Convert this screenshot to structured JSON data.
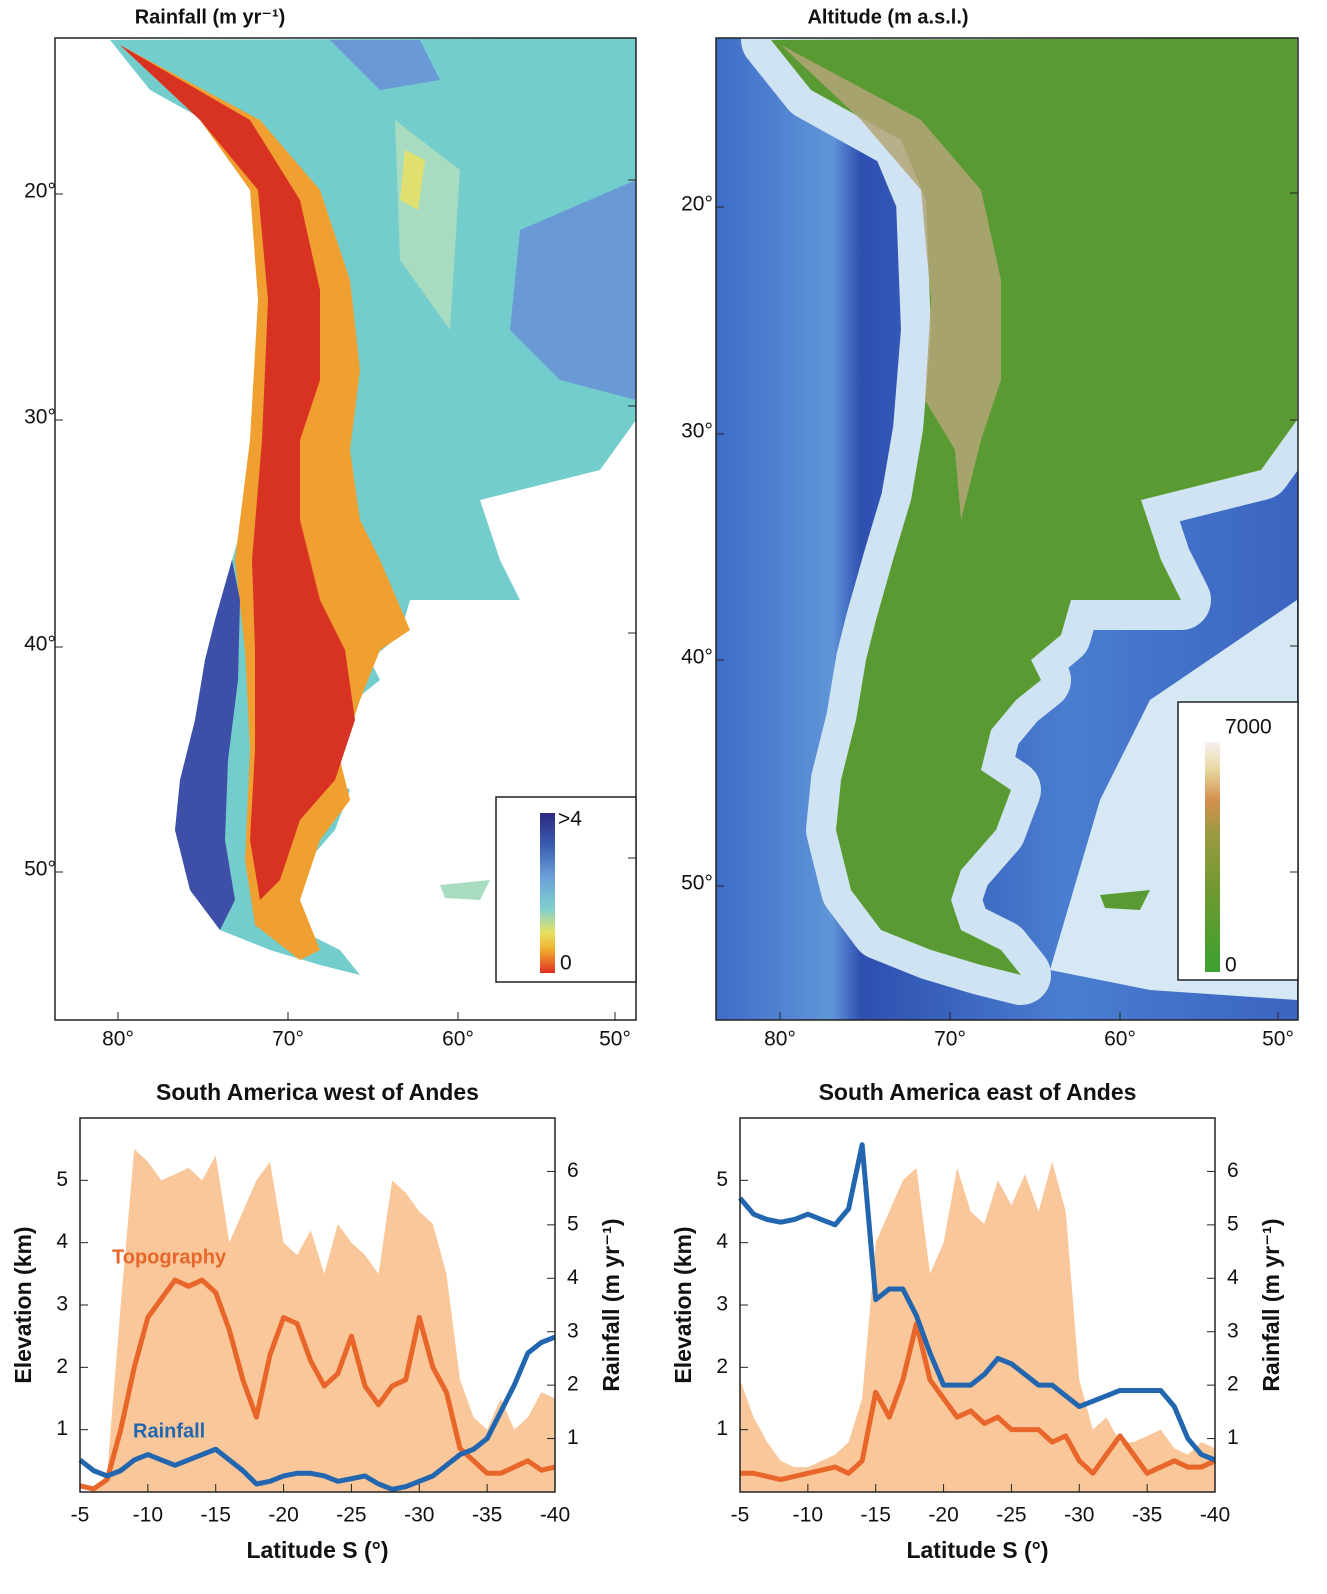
{
  "maps": [
    {
      "title": "Rainfall (m yr⁻¹)",
      "lat_labels": [
        "20°",
        "30°",
        "40°",
        "50°"
      ],
      "lon_labels": [
        "80°",
        "70°",
        "60°",
        "50°"
      ],
      "legend_labels": [
        ">4",
        "0"
      ]
    },
    {
      "title": "Altitude (m a.s.l.)",
      "lat_labels": [
        "20°",
        "30°",
        "40°",
        "50°"
      ],
      "lon_labels": [
        "80°",
        "70°",
        "60°",
        "50°"
      ],
      "legend_labels": [
        "7000",
        "0"
      ]
    }
  ],
  "chart_data": [
    {
      "type": "line",
      "title": "South America west of Andes",
      "x_label": "Latitude S (°)",
      "y_label": "Elevation (km)",
      "y2_label": "Rainfall (m yr⁻¹)",
      "x": [
        -5,
        -6,
        -7,
        -8,
        -9,
        -10,
        -11,
        -12,
        -13,
        -14,
        -15,
        -16,
        -17,
        -18,
        -19,
        -20,
        -21,
        -22,
        -23,
        -24,
        -25,
        -26,
        -27,
        -28,
        -29,
        -30,
        -31,
        -32,
        -33,
        -34,
        -35,
        -36,
        -37,
        -38,
        -39,
        -40
      ],
      "xlim": [
        -5,
        -40
      ],
      "xticks": [
        -5,
        -10,
        -15,
        -20,
        -25,
        -30,
        -35,
        -40
      ],
      "ylim": [
        0,
        6
      ],
      "yticks": [
        1,
        2,
        3,
        4,
        5
      ],
      "y2lim": [
        0,
        7
      ],
      "y2ticks": [
        1,
        2,
        3,
        4,
        5,
        6
      ],
      "series": [
        {
          "type": "area",
          "color": "#f9c79a",
          "values": [
            0,
            0,
            0.3,
            3,
            5.5,
            5.3,
            5.0,
            5.1,
            5.2,
            5.0,
            5.4,
            4.0,
            4.5,
            5.0,
            5.3,
            4.0,
            3.8,
            4.2,
            3.5,
            4.3,
            4.0,
            3.8,
            3.5,
            5.0,
            4.8,
            4.5,
            4.3,
            3.5,
            1.8,
            1.2,
            1.0,
            1.5,
            1.0,
            1.2,
            1.6,
            1.5
          ]
        },
        {
          "name": "Topography",
          "type": "line",
          "color": "#e8662a",
          "values": [
            0.1,
            0.05,
            0.2,
            1.0,
            2.0,
            2.8,
            3.1,
            3.4,
            3.3,
            3.4,
            3.2,
            2.6,
            1.8,
            1.2,
            2.2,
            2.8,
            2.7,
            2.1,
            1.7,
            1.9,
            2.5,
            1.7,
            1.4,
            1.7,
            1.8,
            2.8,
            2.0,
            1.6,
            0.7,
            0.5,
            0.3,
            0.3,
            0.4,
            0.5,
            0.35,
            0.4
          ]
        },
        {
          "name": "Rainfall",
          "type": "line",
          "axis": "y2",
          "color": "#2266b0",
          "values": [
            0.6,
            0.4,
            0.3,
            0.4,
            0.6,
            0.7,
            0.6,
            0.5,
            0.6,
            0.7,
            0.8,
            0.6,
            0.4,
            0.15,
            0.2,
            0.3,
            0.35,
            0.35,
            0.3,
            0.2,
            0.25,
            0.3,
            0.15,
            0.05,
            0.1,
            0.2,
            0.3,
            0.5,
            0.7,
            0.8,
            1.0,
            1.5,
            2.0,
            2.6,
            2.8,
            2.9
          ]
        }
      ]
    },
    {
      "type": "line",
      "title": "South America east of Andes",
      "x_label": "Latitude S (°)",
      "y_label": "Elevation (km)",
      "y2_label": "Rainfall (m yr⁻¹)",
      "x": [
        -5,
        -6,
        -7,
        -8,
        -9,
        -10,
        -11,
        -12,
        -13,
        -14,
        -15,
        -16,
        -17,
        -18,
        -19,
        -20,
        -21,
        -22,
        -23,
        -24,
        -25,
        -26,
        -27,
        -28,
        -29,
        -30,
        -31,
        -32,
        -33,
        -34,
        -35,
        -36,
        -37,
        -38,
        -39,
        -40
      ],
      "xlim": [
        -5,
        -40
      ],
      "xticks": [
        -5,
        -10,
        -15,
        -20,
        -25,
        -30,
        -35,
        -40
      ],
      "ylim": [
        0,
        6
      ],
      "yticks": [
        1,
        2,
        3,
        4,
        5
      ],
      "y2lim": [
        0,
        7
      ],
      "y2ticks": [
        1,
        2,
        3,
        4,
        5,
        6
      ],
      "series": [
        {
          "type": "area",
          "color": "#f9c79a",
          "values": [
            1.8,
            1.2,
            0.8,
            0.5,
            0.4,
            0.4,
            0.5,
            0.6,
            0.8,
            1.5,
            4.0,
            4.5,
            5.0,
            5.2,
            3.5,
            4.0,
            5.2,
            4.5,
            4.3,
            5.0,
            4.6,
            5.1,
            4.5,
            5.3,
            4.5,
            1.8,
            1.0,
            1.2,
            0.8,
            0.8,
            0.9,
            1.0,
            0.7,
            0.6,
            0.8,
            0.7
          ]
        },
        {
          "type": "line",
          "color": "#e8662a",
          "values": [
            0.3,
            0.3,
            0.25,
            0.2,
            0.25,
            0.3,
            0.35,
            0.4,
            0.3,
            0.5,
            1.6,
            1.2,
            1.8,
            2.7,
            1.8,
            1.5,
            1.2,
            1.3,
            1.1,
            1.2,
            1.0,
            1.0,
            1.0,
            0.8,
            0.9,
            0.5,
            0.3,
            0.6,
            0.9,
            0.6,
            0.3,
            0.4,
            0.5,
            0.4,
            0.4,
            0.5
          ]
        },
        {
          "type": "line",
          "axis": "y2",
          "color": "#2266b0",
          "values": [
            5.5,
            5.2,
            5.1,
            5.05,
            5.1,
            5.2,
            5.1,
            5.0,
            5.3,
            6.5,
            3.6,
            3.8,
            3.8,
            3.3,
            2.6,
            2.0,
            2.0,
            2.0,
            2.2,
            2.5,
            2.4,
            2.2,
            2.0,
            2.0,
            1.8,
            1.6,
            1.7,
            1.8,
            1.9,
            1.9,
            1.9,
            1.9,
            1.6,
            1.0,
            0.7,
            0.6
          ]
        }
      ]
    }
  ]
}
